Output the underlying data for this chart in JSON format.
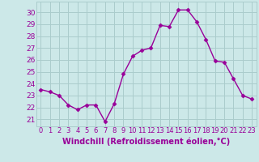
{
  "x": [
    0,
    1,
    2,
    3,
    4,
    5,
    6,
    7,
    8,
    9,
    10,
    11,
    12,
    13,
    14,
    15,
    16,
    17,
    18,
    19,
    20,
    21,
    22,
    23
  ],
  "y": [
    23.5,
    23.3,
    23.0,
    22.2,
    21.8,
    22.2,
    22.2,
    20.8,
    22.3,
    24.8,
    26.3,
    26.8,
    27.0,
    28.9,
    28.8,
    30.2,
    30.2,
    29.2,
    27.7,
    25.9,
    25.8,
    24.4,
    23.0,
    22.7
  ],
  "line_color": "#990099",
  "marker": "D",
  "markersize": 2.5,
  "linewidth": 1.0,
  "background_color": "#cce8e8",
  "grid_color": "#aacccc",
  "xlabel": "Windchill (Refroidissement éolien,°C)",
  "xlabel_color": "#990099",
  "xlabel_fontsize": 7,
  "tick_color": "#990099",
  "tick_fontsize": 6.5,
  "ytick_vals": [
    21,
    22,
    23,
    24,
    25,
    26,
    27,
    28,
    29,
    30
  ],
  "ylim": [
    20.4,
    30.9
  ],
  "xlim": [
    -0.5,
    23.5
  ],
  "xtick_fontsize": 6.0
}
